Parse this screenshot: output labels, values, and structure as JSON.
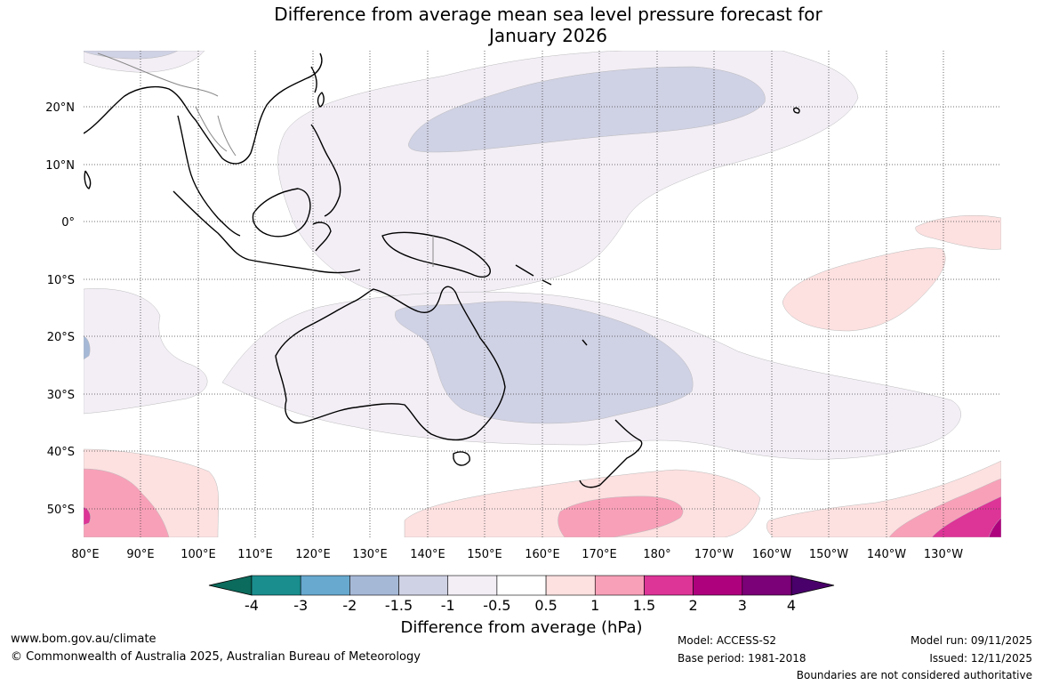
{
  "title_line1": "Difference from average mean sea level pressure forecast for",
  "title_line2": "January 2026",
  "lon_labels": [
    "80°E",
    "90°E",
    "100°E",
    "110°E",
    "120°E",
    "130°E",
    "140°E",
    "150°E",
    "160°E",
    "170°E",
    "180°",
    "170°W",
    "160°W",
    "150°W",
    "140°W",
    "130°W"
  ],
  "lat_labels": [
    "20°N",
    "10°N",
    "0°",
    "10°S",
    "20°S",
    "30°S",
    "40°S",
    "50°S"
  ],
  "colorbar": {
    "ticks": [
      "-4",
      "-3",
      "-2",
      "-1.5",
      "-1",
      "-0.5",
      "0.5",
      "1",
      "1.5",
      "2",
      "3",
      "4"
    ],
    "colors": [
      "#1a8e8e",
      "#67a9cf",
      "#a5b8d6",
      "#cfd1e4",
      "#f3eef6",
      "#ffffff",
      "#fde0e0",
      "#f8a0b8",
      "#dd3497",
      "#ae017e",
      "#7a0177"
    ],
    "under_color": "#0b6b5c",
    "over_color": "#49006a",
    "label": "Difference from average (hPa)"
  },
  "footer": {
    "website": "www.bom.gov.au/climate",
    "copyright": "© Commonwealth of Australia 2025, Australian Bureau of Meteorology",
    "model": "Model: ACCESS-S2",
    "base_period": "Base period: 1981-2018",
    "model_run": "Model run: 09/11/2025",
    "issued": "Issued: 12/11/2025",
    "disclaimer": "Boundaries are not considered authoritative"
  },
  "colors": {
    "grid": "#444444",
    "coast": "#000000",
    "border": "#888888"
  }
}
